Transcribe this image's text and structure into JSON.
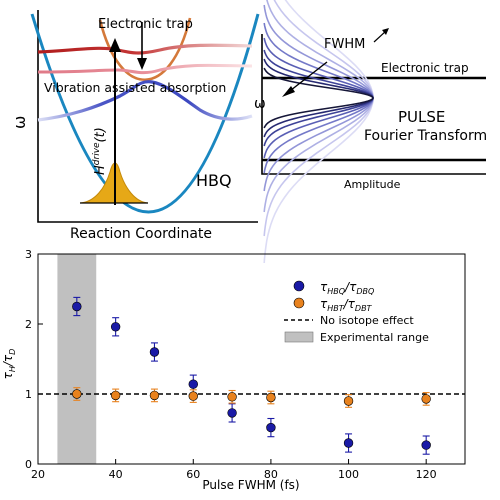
{
  "schematic_left": {
    "label_electronic_trap": "Electronic  trap",
    "label_vibration": "Vibration assisted absorption",
    "y_axis_label": "ω",
    "drive_label": "H",
    "drive_label_sup": "drive",
    "drive_label_arg": "(t)",
    "molecule_label": "HBQ",
    "x_axis_label": "Reaction Coordinate"
  },
  "schematic_right": {
    "fwhm_label": "FWHM",
    "label_electronic_trap": "Electronic  trap",
    "y_axis_label": "ω",
    "pulse_label": "PULSE",
    "fourier_label": "Fourier Transform",
    "x_axis_label": "Amplitude"
  },
  "colors": {
    "hbq_series": "#1a1aa6",
    "hbt_series": "#e8821e",
    "shaded_range": "#c0c0c0",
    "potential_ground": "#1a87c0",
    "potential_excited": "#d4793a",
    "pulse_fill": "#e6a817"
  },
  "chart_data": {
    "type": "scatter",
    "xlabel": "Pulse FWHM (fs)",
    "ylabel": "τ_H/τ_D",
    "xlim": [
      20,
      130
    ],
    "ylim": [
      0,
      3
    ],
    "x_ticks": [
      20,
      40,
      60,
      80,
      100,
      120
    ],
    "y_ticks": [
      0,
      1,
      2,
      3
    ],
    "grid": false,
    "legend_position": "top-right",
    "shaded_region": {
      "name": "Experimental range",
      "x": [
        25,
        35
      ]
    },
    "reference_line": {
      "name": "No isotope effect",
      "y": 1.0,
      "style": "dashed"
    },
    "series": [
      {
        "name": "τ_HBQ/τ_DBQ",
        "name_parts": {
          "base": "τ",
          "sub1": "HBQ",
          "mid": "/τ",
          "sub2": "DBQ"
        },
        "color": "#1a1aa6",
        "x": [
          30,
          40,
          50,
          60,
          70,
          80,
          100,
          120
        ],
        "y": [
          2.25,
          1.96,
          1.6,
          1.14,
          0.73,
          0.52,
          0.3,
          0.27
        ],
        "yerr": [
          0.13,
          0.13,
          0.13,
          0.13,
          0.13,
          0.13,
          0.13,
          0.13
        ]
      },
      {
        "name": "τ_HBT/τ_DBT",
        "name_parts": {
          "base": "τ",
          "sub1": "HBT",
          "mid": "/τ",
          "sub2": "DBT"
        },
        "color": "#e8821e",
        "x": [
          30,
          40,
          50,
          60,
          70,
          80,
          100,
          120
        ],
        "y": [
          1.0,
          0.98,
          0.98,
          0.97,
          0.96,
          0.95,
          0.9,
          0.93
        ],
        "yerr": [
          0.09,
          0.09,
          0.09,
          0.09,
          0.09,
          0.09,
          0.09,
          0.09
        ]
      }
    ]
  }
}
